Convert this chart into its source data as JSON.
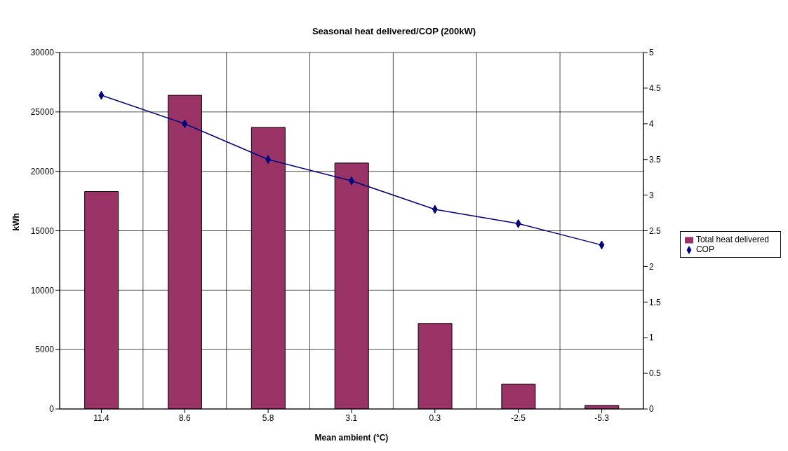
{
  "chart_data": {
    "type": "bar",
    "title": "Seasonal heat delivered/COP (200kW)",
    "xlabel": "Mean ambient (°C)",
    "ylabel": "kWh",
    "categories": [
      "11.4",
      "8.6",
      "5.8",
      "3.1",
      "0.3",
      "-2.5",
      "-5.3"
    ],
    "series": [
      {
        "name": "Total heat delivered",
        "color": "#993366",
        "values": [
          18300,
          26400,
          23700,
          20700,
          7200,
          2100,
          300
        ]
      },
      {
        "name": "COP",
        "type": "line",
        "axis": "y2",
        "color": "#000080",
        "marker": "diamond",
        "values": [
          4.4,
          4.0,
          3.5,
          3.2,
          2.8,
          2.6,
          2.3
        ]
      }
    ],
    "ylim": [
      0,
      30000
    ],
    "yticks": [
      0,
      5000,
      10000,
      15000,
      20000,
      25000,
      30000
    ],
    "y2lim": [
      0,
      5
    ],
    "y2ticks": [
      0,
      0.5,
      1,
      1.5,
      2,
      2.5,
      3,
      3.5,
      4,
      4.5,
      5
    ],
    "grid": true,
    "legend": "right"
  }
}
